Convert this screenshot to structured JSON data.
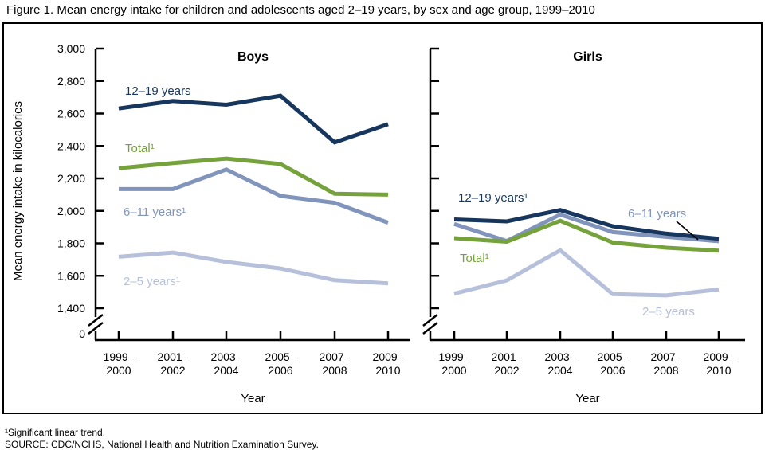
{
  "title": "Figure 1. Mean energy intake for children and adolescents aged 2–19 years, by sex and age group, 1999–2010",
  "footnotes": {
    "trend": "¹Significant linear trend.",
    "source": "SOURCE: CDC/NCHS, National Health and Nutrition Examination Survey."
  },
  "colors": {
    "age_12_19": "#17365D",
    "total": "#76A23C",
    "age_6_11": "#8094BC",
    "age_2_5": "#B6C0DA",
    "axis": "#000000"
  },
  "chart_data": [
    {
      "type": "line",
      "title": "Boys",
      "categories": [
        "1999–2000",
        "2001–2002",
        "2003–2004",
        "2005–2006",
        "2007–2008",
        "2009–2010"
      ],
      "xlabel": "Year",
      "ylabel": "Mean energy intake in kilocalories",
      "yticks": [
        3000,
        2800,
        2600,
        2400,
        2200,
        2000,
        1800,
        1600,
        1400
      ],
      "y_zero_label": "0",
      "y_axis_break": true,
      "ylim": [
        1400,
        3000
      ],
      "grid": false,
      "legend_position": "inline-labels",
      "series": [
        {
          "name": "12-19-years",
          "label": "12–19 years",
          "significant_trend": false,
          "color": "#17365D",
          "values": [
            2631,
            2677,
            2654,
            2710,
            2422,
            2534
          ]
        },
        {
          "name": "total",
          "label": "Total¹",
          "significant_trend": true,
          "color": "#76A23C",
          "values": [
            2263,
            2294,
            2322,
            2289,
            2106,
            2100
          ]
        },
        {
          "name": "6-11-years",
          "label": "6–11 years¹",
          "significant_trend": true,
          "color": "#8094BC",
          "values": [
            2134,
            2134,
            2255,
            2092,
            2050,
            1927
          ]
        },
        {
          "name": "2-5-years",
          "label": "2–5 years¹",
          "significant_trend": true,
          "color": "#B6C0DA",
          "values": [
            1717,
            1743,
            1685,
            1645,
            1573,
            1553
          ]
        }
      ]
    },
    {
      "type": "line",
      "title": "Girls",
      "categories": [
        "1999–2000",
        "2001–2002",
        "2003–2004",
        "2005–2006",
        "2007–2008",
        "2009–2010"
      ],
      "xlabel": "Year",
      "ylabel": "Mean energy intake in kilocalories",
      "yticks": [
        3000,
        2800,
        2600,
        2400,
        2200,
        2000,
        1800,
        1600,
        1400
      ],
      "y_zero_label": "0",
      "y_axis_break": true,
      "ylim": [
        1400,
        3000
      ],
      "grid": false,
      "legend_position": "inline-labels",
      "series": [
        {
          "name": "12-19-years",
          "label": "12–19 years¹",
          "significant_trend": true,
          "color": "#17365D",
          "values": [
            1947,
            1935,
            2005,
            1905,
            1860,
            1828
          ]
        },
        {
          "name": "total",
          "label": "Total¹",
          "significant_trend": true,
          "color": "#76A23C",
          "values": [
            1832,
            1810,
            1939,
            1805,
            1773,
            1755
          ]
        },
        {
          "name": "6-11-years",
          "label": "6–11 years",
          "significant_trend": false,
          "color": "#8094BC",
          "values": [
            1919,
            1814,
            1977,
            1869,
            1840,
            1813
          ]
        },
        {
          "name": "2-5-years",
          "label": "2–5 years",
          "significant_trend": false,
          "color": "#B6C0DA",
          "values": [
            1490,
            1572,
            1757,
            1487,
            1479,
            1516
          ]
        }
      ]
    }
  ]
}
